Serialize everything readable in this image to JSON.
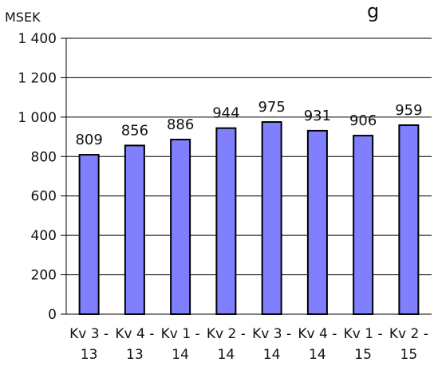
{
  "chart_data": {
    "type": "bar",
    "title_fragment": "g",
    "ylabel": "MSEK",
    "categories": [
      [
        "Kv 3 -",
        "13"
      ],
      [
        "Kv 4 -",
        "13"
      ],
      [
        "Kv 1 -",
        "14"
      ],
      [
        "Kv 2 -",
        "14"
      ],
      [
        "Kv 3 -",
        "14"
      ],
      [
        "Kv 4 -",
        "14"
      ],
      [
        "Kv 1 -",
        "15"
      ],
      [
        "Kv 2 -",
        "15"
      ]
    ],
    "values": [
      809,
      856,
      886,
      944,
      975,
      931,
      906,
      959
    ],
    "data_labels": [
      "809",
      "856",
      "886",
      "944",
      "975",
      "931",
      "906",
      "959"
    ],
    "ylim": [
      0,
      1400
    ],
    "yticks": [
      0,
      200,
      400,
      600,
      800,
      1000,
      1200,
      1400
    ],
    "ytick_labels": [
      "0",
      "200",
      "400",
      "600",
      "800",
      "1 000",
      "1 200",
      "1 400"
    ],
    "grid": true,
    "bar_color": "#8080ff",
    "bar_outline": "#000000"
  }
}
